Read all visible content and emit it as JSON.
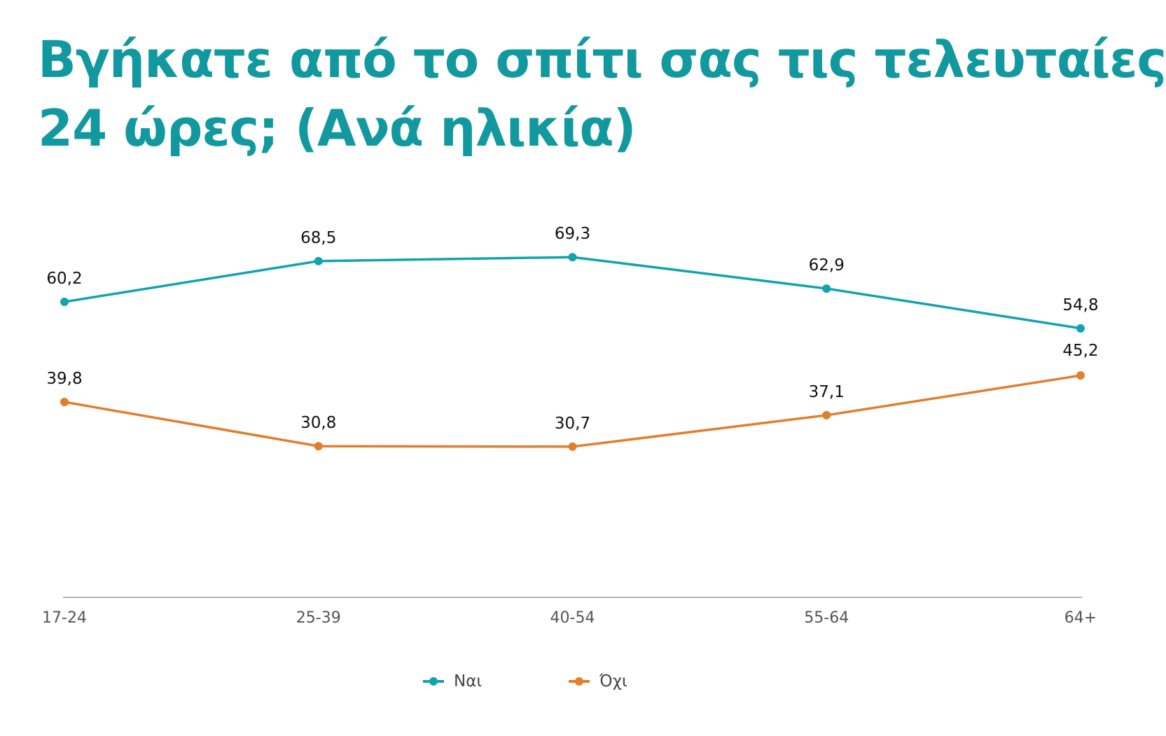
{
  "title_lines": [
    "Βγήκατε από το σπίτι σας τις τελευταίες",
    "24 ώρες; (Ανά ηλικία)"
  ],
  "colors": {
    "title": "#12999f",
    "nai": "#12a3ad",
    "oxi": "#e07f2c",
    "axis": "#9a9a9a"
  },
  "chart_data": {
    "type": "line",
    "title": "Βγήκατε από το σπίτι σας τις τελευταίες 24 ώρες; (Ανά ηλικία)",
    "categories": [
      "17-24",
      "25-39",
      "40-54",
      "55-64",
      "64+"
    ],
    "series": [
      {
        "name": "Ναι",
        "values": [
          60.2,
          68.5,
          69.3,
          62.9,
          54.8
        ],
        "labels": [
          "60,2",
          "68,5",
          "69,3",
          "62,9",
          "54,8"
        ]
      },
      {
        "name": "Όχι",
        "values": [
          39.8,
          30.8,
          30.7,
          37.1,
          45.2
        ],
        "labels": [
          "39,8",
          "30,8",
          "30,7",
          "37,1",
          "45,2"
        ]
      }
    ],
    "xlabel": "",
    "ylabel": "",
    "grid": false,
    "legend_position": "bottom-center"
  },
  "legend": [
    {
      "label": "Ναι",
      "icon": "teal-line-dot-icon"
    },
    {
      "label": "Όχι",
      "icon": "orange-line-dot-icon"
    }
  ]
}
